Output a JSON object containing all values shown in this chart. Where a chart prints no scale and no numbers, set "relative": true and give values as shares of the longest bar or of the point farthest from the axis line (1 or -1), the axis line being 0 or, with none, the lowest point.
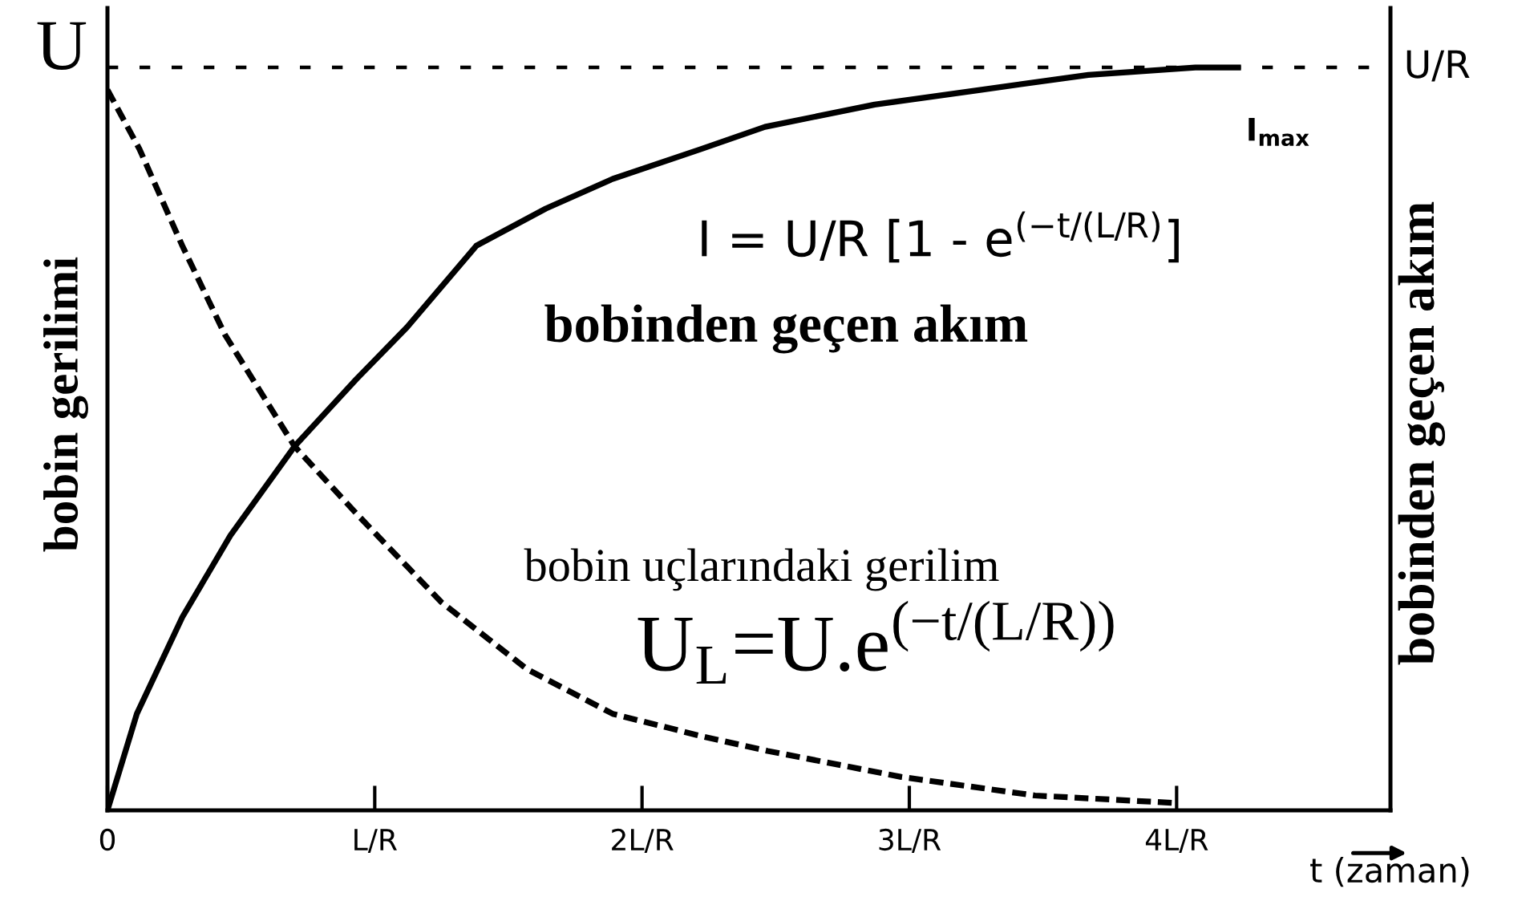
{
  "chart_data": {
    "type": "line",
    "relative": true,
    "xlabel": "t (zaman)",
    "ylabel": "bobin gerilimi",
    "y2label": "bobinden geçen akım",
    "xlim": [
      0,
      4.8
    ],
    "xticks": [
      0,
      {
        "value": 1,
        "label": "L/R"
      },
      {
        "value": 2,
        "label": "2L/R"
      },
      {
        "value": 3,
        "label": "3L/R"
      },
      {
        "value": 4,
        "label": "4L/R"
      }
    ],
    "series": [
      {
        "name": "bobinden geçen akım",
        "color": "#000000",
        "line_style": "solid",
        "x": [
          0,
          0.11,
          0.28,
          0.46,
          0.7,
          0.93,
          1.12,
          1.38,
          1.64,
          1.89,
          2.22,
          2.46,
          2.87,
          3.27,
          3.67,
          4.07,
          4.23
        ],
        "values": [
          0,
          0.13,
          0.26,
          0.37,
          0.49,
          0.58,
          0.65,
          0.76,
          0.81,
          0.85,
          0.89,
          0.92,
          0.95,
          0.97,
          0.99,
          1.0,
          1.0
        ]
      },
      {
        "name": "bobin uçlarındaki gerilim",
        "color": "#000000",
        "line_style": "dashed",
        "x": [
          0,
          0.12,
          0.28,
          0.44,
          0.7,
          0.93,
          1.25,
          1.57,
          1.89,
          2.22,
          2.47,
          2.97,
          3.47,
          3.99
        ],
        "values": [
          0.97,
          0.89,
          0.76,
          0.64,
          0.49,
          0.4,
          0.28,
          0.19,
          0.13,
          0.1,
          0.08,
          0.045,
          0.02,
          0.01
        ]
      }
    ],
    "ref_lines": [
      {
        "axis": "y",
        "value": 1,
        "color": "#000000",
        "line_style": "dotted"
      }
    ],
    "annotations": [
      {
        "text": "U",
        "x": 0,
        "y": 1
      },
      {
        "text": "U/R",
        "x": 4.8,
        "y": 1
      },
      "I = U/R [1 - e$^{(−t/(L/R)}$]",
      {
        "text": "I$_{max}$",
        "x": 4.23,
        "y": 1.0
      },
      "U$_{L}$=U.e$^{(−t/(L/R))}$"
    ]
  }
}
